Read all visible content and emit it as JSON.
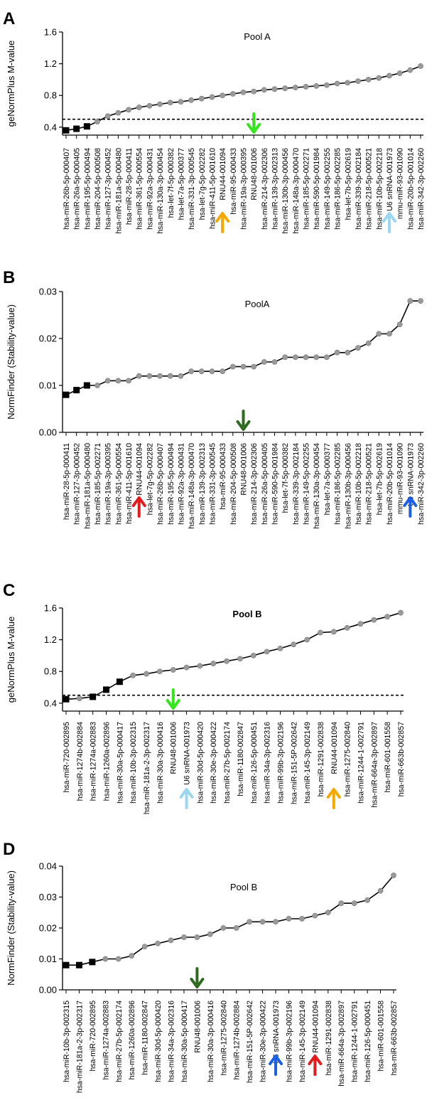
{
  "chart_data": [
    {
      "panel": "A",
      "type": "line",
      "title": "Pool A",
      "ylabel": "geNormPlus M-value",
      "xlabel": "",
      "ylim": [
        0.3,
        1.6
      ],
      "yticks": [
        0.4,
        0.8,
        1.2,
        1.6
      ],
      "threshold": 0.5,
      "categories": [
        "hsa-miR-26b-5p-000407",
        "hsa-miR-26a-5p-000405",
        "hsa-miR-195-5p-000494",
        "hsa-miR-204-5p-000508",
        "hsa-miR-127-3p-000452",
        "hsa-miR-181a-5p-000480",
        "hsa-miR-28-5p-000411",
        "hsa-miR-361-5p-000554",
        "hsa-miR-92a-3p-000431",
        "hsa-miR-130a-3p-000454",
        "hsa-let-7f-5p-000382",
        "hsa-let-7a-5p-000377",
        "hsa-miR-331-3p-000545",
        "hsa-let-7g-5p-002282",
        "hsa-miR-411-5p-001610",
        "RNU44-001094",
        "hsa-miR-95-000433",
        "hsa-miR-19a-3p-000395",
        "RNU48-001006",
        "hsa-miR-214-3p-002306",
        "hsa-miR-139-3p-002313",
        "hsa-miR-130b-3p-000456",
        "hsa-miR-148a-3p-000470",
        "hsa-miR-185-5p-002271",
        "hsa-miR-590-5p-001984",
        "hsa-miR-149-5p-002255",
        "hsa-miR-186-5p-002285",
        "hsa-let-7b-5p-002619",
        "hsa-miR-339-3p-002184",
        "hsa-miR-218-5p-000521",
        "hsa-miR-10b-5p-002218",
        "U6 snRNA-001973",
        "mmu-miR-93-001090",
        "hsa-miR-20b-5p-001014",
        "hsa-miR-342-3p-002260"
      ],
      "values": [
        0.36,
        0.38,
        0.41,
        0.47,
        0.54,
        0.58,
        0.62,
        0.65,
        0.67,
        0.69,
        0.71,
        0.72,
        0.74,
        0.76,
        0.78,
        0.8,
        0.82,
        0.84,
        0.85,
        0.87,
        0.88,
        0.89,
        0.9,
        0.91,
        0.92,
        0.93,
        0.95,
        0.96,
        0.98,
        1.0,
        1.02,
        1.05,
        1.08,
        1.12,
        1.17
      ],
      "highlighted": [
        0,
        1,
        2
      ],
      "arrows": [
        {
          "index": 15,
          "color": "#f5a800",
          "direction": "up"
        },
        {
          "index": 18,
          "color": "#33e61a",
          "direction": "down"
        },
        {
          "index": 31,
          "color": "#9ad7ef",
          "direction": "up"
        }
      ]
    },
    {
      "panel": "B",
      "type": "line",
      "title": "PoolA",
      "ylabel": "NormFinder (Stability-value)",
      "xlabel": "",
      "ylim": [
        0.0,
        0.03
      ],
      "yticks": [
        0.0,
        0.01,
        0.02,
        0.03
      ],
      "ytick_labels": [
        "0.00",
        "0.01",
        "0.02",
        "0.03"
      ],
      "categories": [
        "hsa-miR-28-5p-000411",
        "hsa-miR-127-3p-000452",
        "hsa-miR-181a-5p-000480",
        "hsa-miR-185-5p-002271",
        "hsa-miR-19a-3p-000395",
        "hsa-miR-361-5p-000554",
        "hsa-miR-411-5p-001610",
        "RNU44-001094",
        "hsa-let-7g-5p-002282",
        "hsa-miR-26b-5p-000407",
        "hsa-miR-195-5p-000494",
        "hsa-miR-92a-3p-000431",
        "hsa-miR-148a-3p-000470",
        "hsa-miR-139-3p-002313",
        "hsa-miR-331-3p-000545",
        "hsa-miR-95-000433",
        "hsa-miR-204-5p-000508",
        "RNU48-001006",
        "hsa-miR-214-3p-002306",
        "hsa-miR-26a-5p-000405",
        "hsa-miR-590-5p-001984",
        "hsa-let-7f-5p-000382",
        "hsa-miR-339-3p-002184",
        "hsa-miR-149-5p-002255",
        "hsa-miR-130a-3p-000454",
        "hsa-let-7a-5p-000377",
        "hsa-miR-186-5p-002285",
        "hsa-miR-130b-3p-000456",
        "hsa-miR-10b-5p-002218",
        "hsa-miR-218-5p-000521",
        "hsa-let-7b-5p-002619",
        "hsa-miR-20b-5p-001014",
        "mmu-miR-93-001090",
        "U6 snRNA-001973",
        "hsa-miR-342-3p-002260"
      ],
      "values": [
        0.008,
        0.009,
        0.01,
        0.01,
        0.011,
        0.011,
        0.011,
        0.012,
        0.012,
        0.012,
        0.012,
        0.012,
        0.013,
        0.013,
        0.013,
        0.013,
        0.014,
        0.014,
        0.014,
        0.015,
        0.015,
        0.016,
        0.016,
        0.016,
        0.016,
        0.016,
        0.017,
        0.017,
        0.018,
        0.019,
        0.021,
        0.021,
        0.023,
        0.028,
        0.028
      ],
      "highlighted": [
        0,
        1,
        2
      ],
      "arrows": [
        {
          "index": 7,
          "color": "#e41a1c",
          "direction": "up"
        },
        {
          "index": 17,
          "color": "#2d6a1f",
          "direction": "down"
        },
        {
          "index": 33,
          "color": "#1a5fe6",
          "direction": "up"
        }
      ]
    },
    {
      "panel": "C",
      "type": "line",
      "title": "Pool B",
      "ylabel": "geNormPlus M-value",
      "xlabel": "",
      "ylim": [
        0.3,
        1.6
      ],
      "yticks": [
        0.4,
        0.8,
        1.2,
        1.6
      ],
      "threshold": 0.5,
      "categories": [
        "hsa-miR-720-002895",
        "hsa-miR-1274b-002884",
        "hsa-miR-1274a-002883",
        "hsa-miR-1260a-002896",
        "hsa-miR-30a-5p-000417",
        "hsa-miR-10b-3p-002315",
        "hsa-miR-181a-2-3p-002317",
        "hsa-miR-30a-3p-000416",
        "RNU48-001006",
        "U6 snRNA-001973",
        "hsa-miR-30d-5p-000420",
        "hsa-miR-30e-3p-000422",
        "hsa-miR-27b-5p-002174",
        "hsa-miR-1180-002847",
        "hsa-miR-126-5p-000451",
        "hsa-miR-34a-3p-002316",
        "hsa-miR-99b-3p-002196",
        "hsa-miR-151-5P-002642",
        "hsa-miR-145-3p-002149",
        "hsa-miR-1291-002838",
        "RNU44-001094",
        "hsa-miR-1275-002840",
        "hsa-miR-1244-1-002791",
        "hsa-miR-664a-3p-002897",
        "hsa-miR-601-001558",
        "hsa-miR-663b-002857"
      ],
      "values": [
        0.45,
        0.46,
        0.48,
        0.57,
        0.67,
        0.75,
        0.77,
        0.8,
        0.82,
        0.85,
        0.87,
        0.9,
        0.93,
        0.96,
        1.0,
        1.05,
        1.09,
        1.14,
        1.2,
        1.29,
        1.3,
        1.35,
        1.4,
        1.45,
        1.49,
        1.54
      ],
      "highlighted": [
        0,
        2,
        3,
        4
      ],
      "arrows": [
        {
          "index": 8,
          "color": "#33e61a",
          "direction": "down"
        },
        {
          "index": 9,
          "color": "#9ad7ef",
          "direction": "up"
        },
        {
          "index": 20,
          "color": "#f5a800",
          "direction": "up"
        }
      ]
    },
    {
      "panel": "D",
      "type": "line",
      "title": "Pool B",
      "ylabel": "NormFinder (Stability-value)",
      "xlabel": "",
      "ylim": [
        0.0,
        0.04
      ],
      "yticks": [
        0.0,
        0.01,
        0.02,
        0.03,
        0.04
      ],
      "ytick_labels": [
        "0.00",
        "0.01",
        "0.02",
        "0.03",
        "0.04"
      ],
      "categories": [
        "hsa-miR-10b-3p-002315",
        "hsa-miR-181a-2-3p-002317",
        "hsa-miR-720-002895",
        "hsa-miR-1274a-002883",
        "hsa-miR-27b-5p-002174",
        "hsa-miR-1260a-002896",
        "hsa-miR-1180-002847",
        "hsa-miR-30d-5p-000420",
        "hsa-miR-34a-3p-002316",
        "hsa-miR-30a-5p-000417",
        "RNU48-001006",
        "hsa-miR-30a-3p-000416",
        "hsa-miR-1275-002840",
        "hsa-miR-1274b-002884",
        "hsa-miR-151-5P-002642",
        "hsa-miR-30e-3p-000422",
        "U6 snRNA-001973",
        "hsa-miR-99b-3p-002196",
        "hsa-miR-145-3p-002149",
        "RNU44-001094",
        "hsa-miR-1291-002838",
        "hsa-miR-664a-3p-002897",
        "hsa-miR-1244-1-002791",
        "hsa-miR-126-5p-000451",
        "hsa-miR-601-001558",
        "hsa-miR-663b-002857"
      ],
      "values": [
        0.008,
        0.008,
        0.009,
        0.01,
        0.01,
        0.011,
        0.014,
        0.015,
        0.016,
        0.017,
        0.017,
        0.018,
        0.02,
        0.02,
        0.022,
        0.022,
        0.022,
        0.023,
        0.023,
        0.024,
        0.025,
        0.028,
        0.028,
        0.029,
        0.032,
        0.037
      ],
      "highlighted": [
        0,
        1,
        2
      ],
      "arrows": [
        {
          "index": 10,
          "color": "#2d6a1f",
          "direction": "down"
        },
        {
          "index": 16,
          "color": "#1a5fe6",
          "direction": "up"
        },
        {
          "index": 19,
          "color": "#e41a1c",
          "direction": "up"
        }
      ]
    }
  ]
}
